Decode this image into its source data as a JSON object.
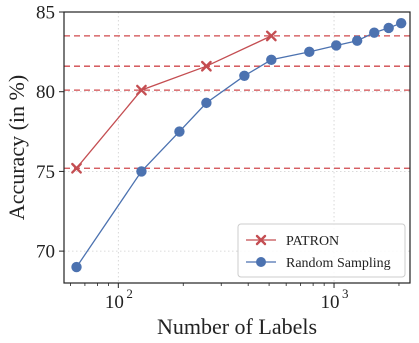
{
  "chart_data": {
    "type": "line",
    "xlabel": "Number of Labels",
    "ylabel": "Accuracy (in %)",
    "xscale": "log",
    "xlim": [
      56,
      2250
    ],
    "ylim": [
      68,
      85
    ],
    "grid": true,
    "legend_position": "bottom-right",
    "x_ticks": [
      {
        "value": 100,
        "label": "10",
        "exp": "2"
      },
      {
        "value": 1000,
        "label": "10",
        "exp": "3"
      }
    ],
    "y_ticks": [
      {
        "value": 70,
        "label": "70"
      },
      {
        "value": 75,
        "label": "75"
      },
      {
        "value": 80,
        "label": "80"
      },
      {
        "value": 85,
        "label": "85"
      }
    ],
    "reference_lines": [
      75.2,
      80.1,
      81.6,
      83.5
    ],
    "reference_color": "#d0484c",
    "series": [
      {
        "name": "PATRON",
        "color": "#c44e52",
        "marker": "x",
        "x": [
          64,
          128,
          256,
          512
        ],
        "y": [
          75.2,
          80.1,
          81.6,
          83.5
        ]
      },
      {
        "name": "Random Sampling",
        "color": "#4c72b0",
        "marker": "o",
        "x": [
          64,
          128,
          192,
          256,
          384,
          512,
          768,
          1024,
          1280,
          1536,
          1792,
          2048
        ],
        "y": [
          69.0,
          75.0,
          77.5,
          79.3,
          81.0,
          82.0,
          82.5,
          82.9,
          83.2,
          83.7,
          84.0,
          84.3
        ]
      }
    ]
  }
}
